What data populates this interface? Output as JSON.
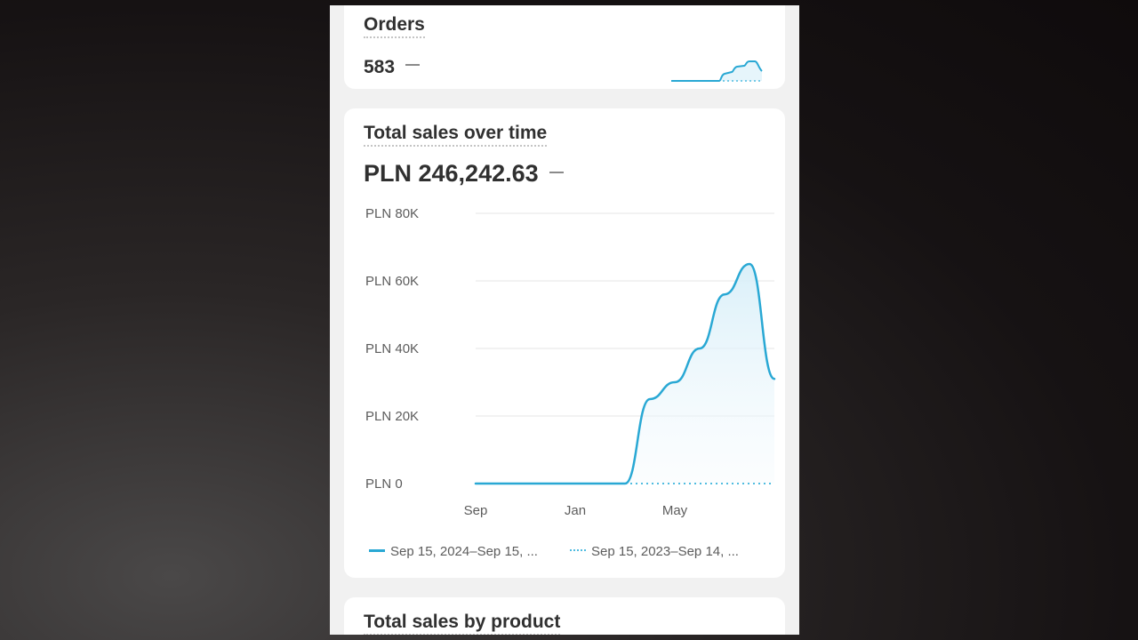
{
  "orders": {
    "title": "Orders",
    "value": "583",
    "trend_indicator": "—"
  },
  "sales_over_time": {
    "title": "Total sales over time",
    "value": "PLN 246,242.63",
    "trend_indicator": "—"
  },
  "sales_by_product": {
    "title": "Total sales by product"
  },
  "colors": {
    "line": "#29a8d4",
    "comparison_line": "#4fbce0",
    "card": "#ffffff",
    "background": "#f1f1f1"
  },
  "chart_data": {
    "type": "line",
    "title": "Total sales over time",
    "xlabel": "",
    "ylabel": "",
    "ylim": [
      0,
      80000
    ],
    "y_ticks": [
      {
        "value": 0,
        "label": "PLN 0"
      },
      {
        "value": 20000,
        "label": "PLN 20K"
      },
      {
        "value": 40000,
        "label": "PLN 40K"
      },
      {
        "value": 60000,
        "label": "PLN 60K"
      },
      {
        "value": 80000,
        "label": "PLN 80K"
      }
    ],
    "x_ticks": [
      {
        "index": 0,
        "label": "Sep"
      },
      {
        "index": 4,
        "label": "Jan"
      },
      {
        "index": 8,
        "label": "May"
      }
    ],
    "grid": true,
    "legend_position": "bottom",
    "series": [
      {
        "name": "Sep 15, 2024–Sep 15, ...",
        "style": "solid",
        "values": [
          0,
          0,
          0,
          0,
          0,
          0,
          0,
          25000,
          30000,
          40000,
          56000,
          65000,
          31000
        ]
      },
      {
        "name": "Sep 15, 2023–Sep 14, ...",
        "style": "dotted",
        "values": [
          0,
          0,
          0,
          0,
          0,
          0,
          0,
          0,
          0,
          0,
          0,
          0,
          0
        ]
      }
    ]
  }
}
